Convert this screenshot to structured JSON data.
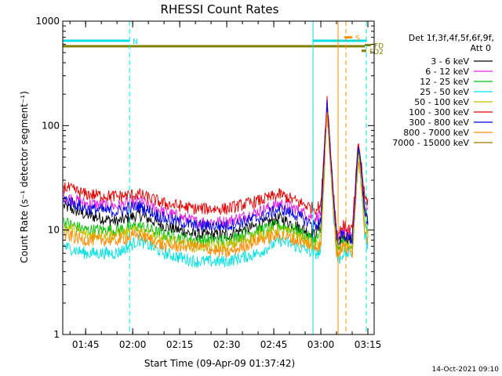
{
  "chart_data": {
    "type": "line",
    "title": "RHESSI Count Rates",
    "xlabel": "Start Time (09-Apr-09 01:37:42)",
    "ylabel": "Count Rate (s⁻¹ detector segment⁻¹)",
    "yscale": "log",
    "ylim": [
      1,
      1000
    ],
    "xlim": [
      "01:37:42",
      "03:17:00"
    ],
    "y_ticks": [
      "1",
      "10",
      "100",
      "1000"
    ],
    "x_ticks": [
      "01:45",
      "02:00",
      "02:15",
      "02:30",
      "02:45",
      "03:00",
      "03:15"
    ],
    "grid": false,
    "legend_position": "top-right",
    "legend_header": [
      "Det 1f,3f,4f,5f,6f,9f,",
      "Att 0"
    ],
    "series": [
      {
        "name": "3 - 6 keV",
        "color": "#000000",
        "x": [
          "01:38",
          "01:45",
          "01:55",
          "02:02",
          "02:10",
          "02:20",
          "02:30",
          "02:40",
          "02:47",
          "02:52",
          "02:58",
          "03:00",
          "03:01",
          "03:02",
          "03:04",
          "03:05",
          "03:05:30",
          "03:07",
          "03:10",
          "03:12",
          "03:13",
          "03:14",
          "03:15"
        ],
        "values": [
          17,
          14,
          12,
          14,
          11,
          9,
          9,
          11,
          13,
          11,
          9,
          11,
          40,
          160,
          20,
          8,
          7,
          9,
          8,
          60,
          35,
          15,
          13
        ]
      },
      {
        "name": "6 - 12 keV",
        "color": "#e020e0",
        "x": [
          "01:38",
          "01:45",
          "01:55",
          "02:02",
          "02:10",
          "02:20",
          "02:30",
          "02:40",
          "02:47",
          "02:52",
          "02:58",
          "03:00",
          "03:01",
          "03:02",
          "03:04",
          "03:05",
          "03:05:30",
          "03:07",
          "03:10",
          "03:12",
          "03:13",
          "03:14",
          "03:15"
        ],
        "values": [
          21,
          18,
          17,
          19,
          15,
          12,
          12,
          15,
          18,
          16,
          13,
          14,
          50,
          170,
          22,
          9,
          8,
          10,
          9,
          65,
          38,
          18,
          17
        ]
      },
      {
        "name": "12 - 25 keV",
        "color": "#00c000",
        "x": [
          "01:38",
          "01:45",
          "01:55",
          "02:02",
          "02:10",
          "02:20",
          "02:30",
          "02:40",
          "02:47",
          "02:52",
          "02:58",
          "03:00",
          "03:01",
          "03:02",
          "03:04",
          "03:05",
          "03:05:30",
          "03:07",
          "03:10",
          "03:12",
          "03:13",
          "03:14",
          "03:15"
        ],
        "values": [
          12,
          10,
          10,
          11,
          9,
          8,
          8,
          10,
          11,
          10,
          8,
          9,
          35,
          150,
          18,
          7,
          6,
          8,
          7,
          55,
          30,
          12,
          10
        ]
      },
      {
        "name": "25 - 50 keV",
        "color": "#00e0e0",
        "x": [
          "01:38",
          "01:45",
          "01:55",
          "02:02",
          "02:10",
          "02:20",
          "02:30",
          "02:40",
          "02:47",
          "02:52",
          "02:58",
          "03:00",
          "03:01",
          "03:02",
          "03:04",
          "03:05",
          "03:05:30",
          "03:07",
          "03:10",
          "03:12",
          "03:13",
          "03:14",
          "03:15"
        ],
        "values": [
          7,
          6,
          6,
          8,
          6,
          5,
          5,
          6,
          8,
          7,
          6,
          6,
          30,
          140,
          15,
          6,
          5,
          6,
          6,
          50,
          25,
          9,
          7
        ]
      },
      {
        "name": "50 - 100 keV",
        "color": "#c0c000",
        "x": [
          "01:38",
          "01:45",
          "01:55",
          "02:02",
          "02:10",
          "02:20",
          "02:30",
          "02:40",
          "02:47",
          "02:52",
          "02:58",
          "03:00",
          "03:01",
          "03:02",
          "03:04",
          "03:05",
          "03:05:30",
          "03:07",
          "03:10",
          "03:12",
          "03:13",
          "03:14",
          "03:15"
        ],
        "values": [
          11,
          9,
          9,
          10,
          8,
          7,
          7,
          9,
          10,
          9,
          7,
          8,
          33,
          145,
          17,
          7,
          6,
          7,
          7,
          52,
          28,
          11,
          9
        ]
      },
      {
        "name": "100 - 300 keV",
        "color": "#e00000",
        "x": [
          "01:38",
          "01:45",
          "01:55",
          "02:02",
          "02:10",
          "02:20",
          "02:30",
          "02:40",
          "02:47",
          "02:52",
          "02:58",
          "03:00",
          "03:01",
          "03:02",
          "03:04",
          "03:05",
          "03:05:30",
          "03:07",
          "03:10",
          "03:12",
          "03:13",
          "03:14",
          "03:15"
        ],
        "values": [
          26,
          22,
          21,
          22,
          18,
          16,
          16,
          19,
          22,
          19,
          16,
          17,
          55,
          180,
          24,
          10,
          9,
          11,
          10,
          70,
          40,
          20,
          19
        ]
      },
      {
        "name": "300 - 800 keV",
        "color": "#0000e0",
        "x": [
          "01:38",
          "01:45",
          "01:55",
          "02:02",
          "02:10",
          "02:20",
          "02:30",
          "02:40",
          "02:47",
          "02:52",
          "02:58",
          "03:00",
          "03:01",
          "03:02",
          "03:04",
          "03:05",
          "03:05:30",
          "03:07",
          "03:10",
          "03:12",
          "03:13",
          "03:14",
          "03:15"
        ],
        "values": [
          20,
          16,
          15,
          17,
          13,
          11,
          11,
          13,
          16,
          14,
          11,
          12,
          45,
          165,
          21,
          9,
          8,
          9,
          8,
          62,
          36,
          14,
          12
        ]
      },
      {
        "name": "800 - 7000 keV",
        "color": "#ff8c00",
        "x": [
          "01:38",
          "01:45",
          "01:55",
          "02:02",
          "02:10",
          "02:20",
          "02:30",
          "02:40",
          "02:47",
          "02:52",
          "02:58",
          "03:00",
          "03:01",
          "03:02",
          "03:04",
          "03:05",
          "03:05:30",
          "03:07",
          "03:10",
          "03:12",
          "03:13",
          "03:14",
          "03:15"
        ],
        "values": [
          9,
          8,
          8,
          9,
          7,
          7,
          6,
          8,
          9,
          8,
          7,
          7,
          30,
          140,
          16,
          6,
          6,
          7,
          6,
          50,
          27,
          10,
          8
        ]
      },
      {
        "name": "7000 - 15000 keV",
        "color": "#a07800",
        "x": [],
        "values": []
      }
    ],
    "annotations": [
      {
        "type": "hbar",
        "label": "N",
        "color": "#00e0e0",
        "y": 650,
        "x": [
          "01:37:42",
          "01:59:00"
        ]
      },
      {
        "type": "hbar",
        "label": "",
        "color": "#00e0e0",
        "y": 650,
        "x": [
          "02:57:30",
          "03:14:30"
        ]
      },
      {
        "type": "hbar",
        "label": "",
        "color": "#808000",
        "y": 575,
        "x": [
          "01:37:42",
          "03:14:00"
        ]
      },
      {
        "type": "hbar",
        "label": "S",
        "color": "#ff8c00",
        "y": 700,
        "x": [
          "03:07:30",
          "03:10:00"
        ]
      },
      {
        "type": "hbar",
        "label": "FD",
        "color": "#808000",
        "y": 590,
        "x": [
          "03:14:00",
          "03:16:00"
        ]
      },
      {
        "type": "hbar",
        "label": "FD2",
        "color": "#808000",
        "y": 520,
        "x": [
          "03:13:00",
          "03:14:30"
        ]
      },
      {
        "type": "vline",
        "color": "#00e0e0",
        "style": "solid",
        "x": "01:37:42"
      },
      {
        "type": "vline",
        "color": "#00e0e0",
        "style": "dashed",
        "x": "01:59:00"
      },
      {
        "type": "vline",
        "color": "#00e0e0",
        "style": "solid",
        "x": "02:57:30"
      },
      {
        "type": "vline",
        "color": "#ff8c00",
        "style": "solid",
        "x": "03:05:30"
      },
      {
        "type": "vline",
        "color": "#ff8c00",
        "style": "dashed",
        "x": "03:08:00"
      },
      {
        "type": "vline",
        "color": "#00e0e0",
        "style": "dashed",
        "x": "03:14:30"
      }
    ],
    "footer": "14-Oct-2021 09:10"
  }
}
